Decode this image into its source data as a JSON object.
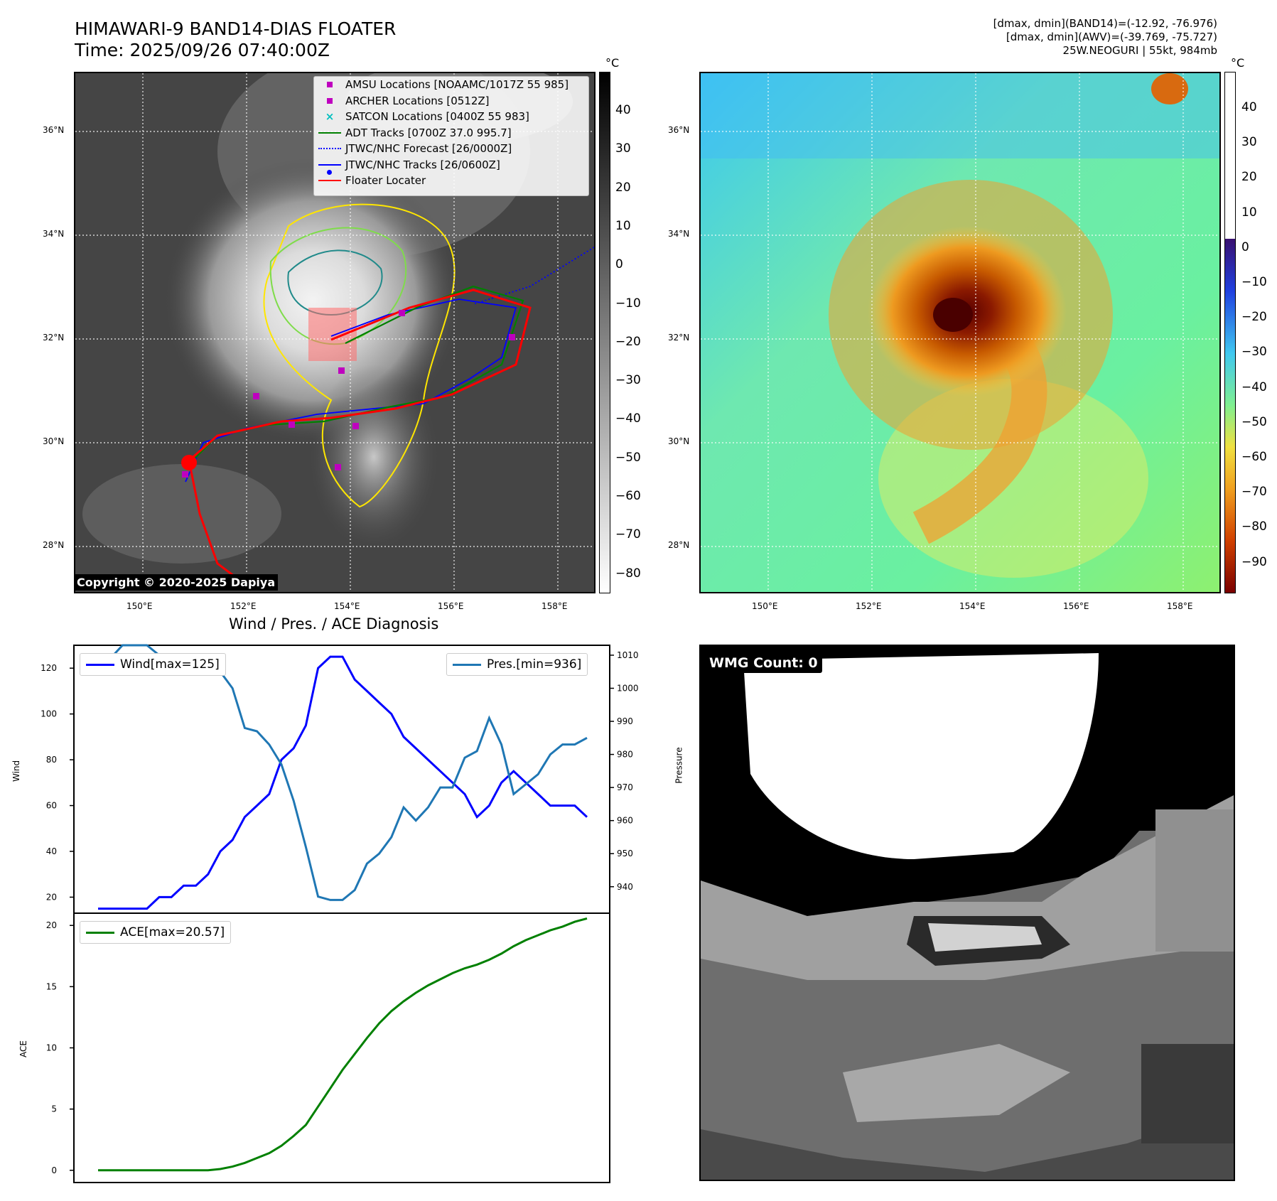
{
  "header": {
    "title_line1": "HIMAWARI-9 BAND14-DIAS FLOATER",
    "title_line2": "Time: 2025/09/26 07:40:00Z",
    "right_line1": "[dmax, dmin](BAND14)=(-12.92, -76.976)",
    "right_line2": "[dmax, dmin](AWV)=(-39.769, -75.727)",
    "right_line3": "25W.NEOGURI | 55kt, 984mb"
  },
  "map": {
    "lat_labels": [
      "36°N",
      "34°N",
      "32°N",
      "30°N",
      "28°N"
    ],
    "lon_labels": [
      "150°E",
      "152°E",
      "154°E",
      "156°E",
      "158°E"
    ],
    "copyright": "Copyright © 2020-2025 Dapiya",
    "colorbar_unit": "°C",
    "colorbar_left_ticks": [
      "40",
      "30",
      "20",
      "10",
      "0",
      "−10",
      "−20",
      "−30",
      "−40",
      "−50",
      "−60",
      "−70",
      "−80"
    ],
    "colorbar_right_ticks": [
      "40",
      "30",
      "20",
      "10",
      "0",
      "−10",
      "−20",
      "−30",
      "−40",
      "−50",
      "−60",
      "−70",
      "−80",
      "−90"
    ],
    "legend": [
      {
        "label": "AMSU Locations [NOAAMC/1017Z 55 985]",
        "color": "#bf00bf",
        "symbol": "square"
      },
      {
        "label": "ARCHER Locations [0512Z]",
        "color": "#bf00bf",
        "symbol": "square"
      },
      {
        "label": "SATCON Locations [0400Z 55 983]",
        "color": "#00bfbf",
        "symbol": "x"
      },
      {
        "label": "ADT Tracks [0700Z 37.0 995.7]",
        "color": "#008000",
        "symbol": "line"
      },
      {
        "label": "JTWC/NHC Forecast [26/0000Z]",
        "color": "#0000ff",
        "symbol": "dotted"
      },
      {
        "label": "JTWC/NHC Tracks [26/0600Z]",
        "color": "#0000ff",
        "symbol": "line-dot"
      },
      {
        "label": "Floater Locater",
        "color": "#ff0000",
        "symbol": "line"
      }
    ]
  },
  "diagnosis": {
    "title": "Wind / Pres. / ACE Diagnosis",
    "wind_ylabel": "Wind",
    "pres_ylabel": "Pressure",
    "ace_ylabel": "ACE",
    "wind_legend": "Wind[max=125]",
    "pres_legend": "Pres.[min=936]",
    "ace_legend": "ACE[max=20.57]",
    "wmg_label": "WMG Count: 0"
  },
  "chart_data": [
    {
      "type": "line",
      "title": "Wind / Pres. / ACE Diagnosis",
      "ylabel": "Wind",
      "ylim": [
        13,
        130
      ],
      "yticks": [
        20,
        40,
        60,
        80,
        100,
        120
      ],
      "series": [
        {
          "name": "Wind[max=125]",
          "color": "#0000ff",
          "values": [
            15,
            15,
            15,
            15,
            15,
            20,
            20,
            25,
            25,
            30,
            40,
            45,
            55,
            60,
            65,
            80,
            85,
            95,
            120,
            125,
            125,
            115,
            110,
            105,
            100,
            90,
            85,
            80,
            75,
            70,
            65,
            55,
            60,
            70,
            75,
            70,
            65,
            60,
            60,
            60,
            55
          ]
        }
      ]
    },
    {
      "type": "line",
      "ylabel": "Pressure",
      "ylim": [
        932,
        1013
      ],
      "yticks": [
        940,
        950,
        960,
        970,
        980,
        990,
        1000,
        1010
      ],
      "series": [
        {
          "name": "Pres.[min=936]",
          "color": "#1f77b4",
          "values": [
            1009,
            1009,
            1013,
            1013,
            1013,
            1010,
            1009,
            1009,
            1009,
            1008,
            1005,
            1000,
            988,
            987,
            983,
            977,
            966,
            952,
            937,
            936,
            936,
            939,
            947,
            950,
            955,
            964,
            960,
            964,
            970,
            970,
            979,
            981,
            991,
            983,
            968,
            971,
            974,
            980,
            983,
            983,
            985
          ]
        }
      ]
    },
    {
      "type": "line",
      "ylabel": "ACE",
      "ylim": [
        -1,
        21
      ],
      "yticks": [
        0,
        5,
        10,
        15,
        20
      ],
      "series": [
        {
          "name": "ACE[max=20.57]",
          "color": "#008000",
          "values": [
            0,
            0,
            0,
            0,
            0,
            0,
            0,
            0,
            0,
            0,
            0.1,
            0.3,
            0.6,
            1.0,
            1.4,
            2.0,
            2.8,
            3.7,
            5.2,
            6.7,
            8.2,
            9.5,
            10.8,
            12.0,
            13.0,
            13.8,
            14.5,
            15.1,
            15.6,
            16.1,
            16.5,
            16.8,
            17.2,
            17.7,
            18.3,
            18.8,
            19.2,
            19.6,
            19.9,
            20.3,
            20.57
          ]
        }
      ]
    }
  ]
}
